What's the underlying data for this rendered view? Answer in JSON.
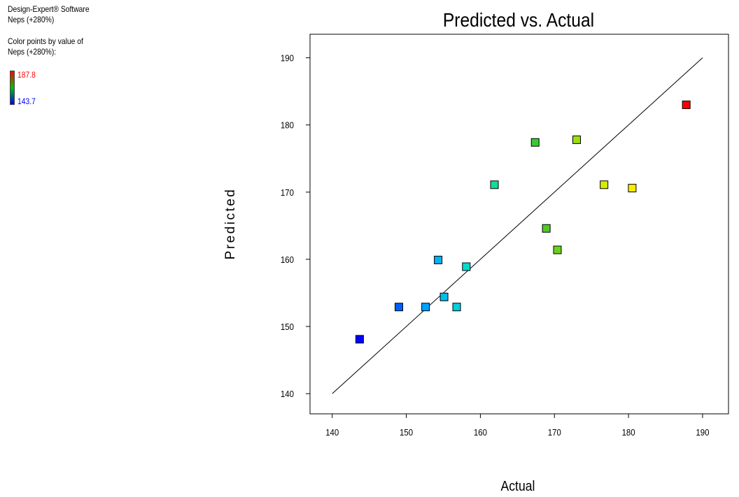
{
  "sidebar": {
    "software": "Design-Expert® Software",
    "response": "Neps (+280%)",
    "color_note_line1": "Color points by value of",
    "color_note_line2": "Neps (+280%):",
    "legend_max": "187.8",
    "legend_min": "143.7"
  },
  "chart_data": {
    "type": "scatter",
    "title": "Predicted vs. Actual",
    "xlabel": "Actual",
    "ylabel": "Predicted",
    "xlim": [
      137,
      193.5
    ],
    "ylim": [
      137,
      193.5
    ],
    "xticks": [
      140,
      150,
      160,
      170,
      180,
      190
    ],
    "yticks": [
      140,
      150,
      160,
      170,
      180,
      190
    ],
    "reference_line": [
      [
        140,
        140
      ],
      [
        190,
        190
      ]
    ],
    "color_scale": {
      "min": 143.7,
      "max": 187.8
    },
    "points": [
      {
        "x": 143.7,
        "y": 148.1
      },
      {
        "x": 149.0,
        "y": 152.9
      },
      {
        "x": 152.6,
        "y": 152.9
      },
      {
        "x": 154.3,
        "y": 159.9
      },
      {
        "x": 155.1,
        "y": 154.4
      },
      {
        "x": 156.8,
        "y": 152.9
      },
      {
        "x": 158.1,
        "y": 158.9
      },
      {
        "x": 161.9,
        "y": 171.1
      },
      {
        "x": 167.4,
        "y": 177.4
      },
      {
        "x": 168.9,
        "y": 164.6
      },
      {
        "x": 170.4,
        "y": 161.4
      },
      {
        "x": 173.0,
        "y": 177.8
      },
      {
        "x": 176.7,
        "y": 171.1
      },
      {
        "x": 180.5,
        "y": 170.6
      },
      {
        "x": 187.8,
        "y": 183.0
      }
    ]
  }
}
